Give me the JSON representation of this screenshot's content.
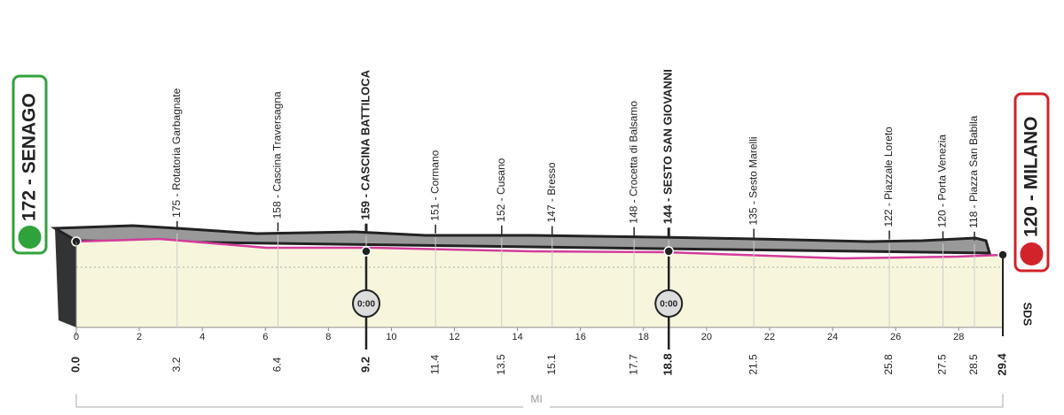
{
  "start": {
    "label": "172 - SENAGO",
    "km": "0.0"
  },
  "finish": {
    "label": "120 - MILANO",
    "km": "29.4"
  },
  "waypoints": [
    {
      "label": "175 - Rotatoria Garbagnate",
      "km": "3.2",
      "bold": false
    },
    {
      "label": "158 - Cascina Traversagna",
      "km": "6.4",
      "bold": false
    },
    {
      "label": "159 - CASCINA BATTILOCA",
      "km": "9.2",
      "bold": true,
      "time": "0:00"
    },
    {
      "label": "151 - Cormano",
      "km": "11.4",
      "bold": false
    },
    {
      "label": "152 - Cusano",
      "km": "13.5",
      "bold": false
    },
    {
      "label": "147 - Bresso",
      "km": "15.1",
      "bold": false
    },
    {
      "label": "148 - Crocetta di Balsamo",
      "km": "17.7",
      "bold": false
    },
    {
      "label": "144 - SESTO SAN GIOVANNI",
      "km": "18.8",
      "bold": true,
      "time": "0:00"
    },
    {
      "label": "135 - Sesto Marelli",
      "km": "21.5",
      "bold": false
    },
    {
      "label": "122 - Piazzale Loreto",
      "km": "25.8",
      "bold": false
    },
    {
      "label": "120 - Porta Venezia",
      "km": "27.5",
      "bold": false
    },
    {
      "label": "118 - Piazza San Babila",
      "km": "28.5",
      "bold": false
    }
  ],
  "axis_ticks": [
    "0",
    "2",
    "4",
    "6",
    "8",
    "10",
    "12",
    "14",
    "16",
    "18",
    "20",
    "22",
    "24",
    "26",
    "28"
  ],
  "unit": "MI",
  "logo": "SDS"
}
